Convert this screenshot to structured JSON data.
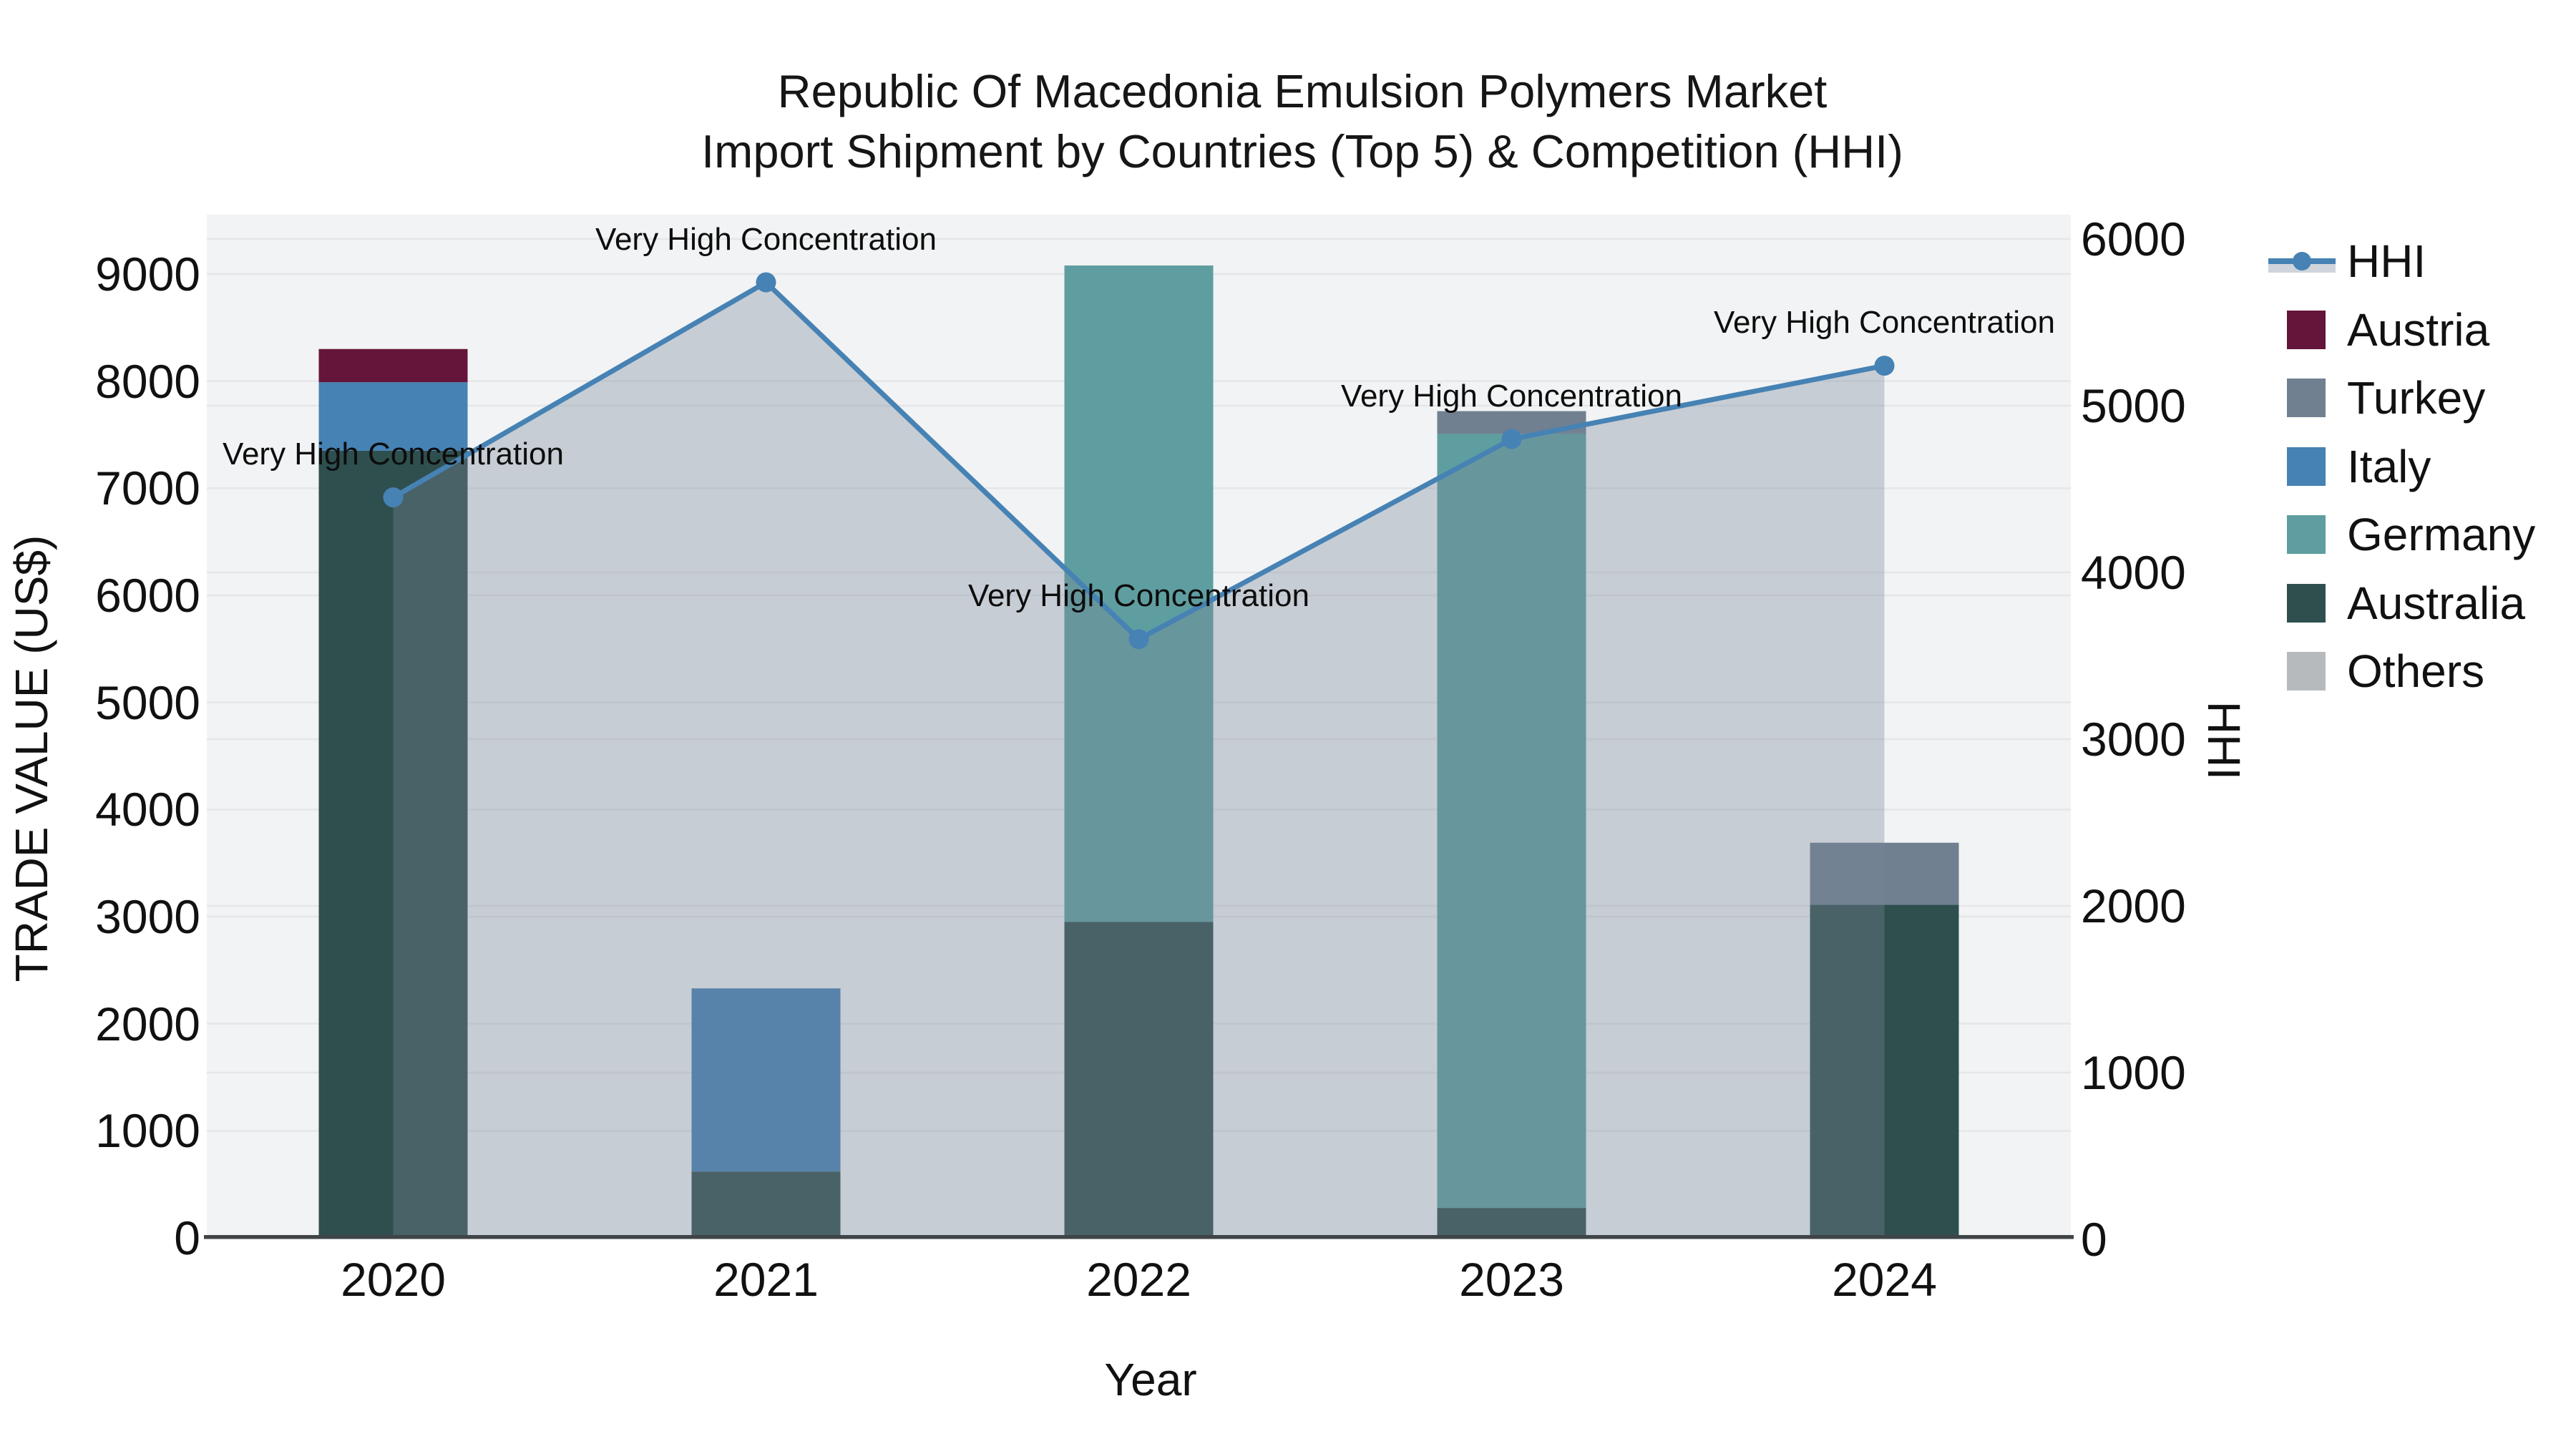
{
  "title": {
    "line1": "Republic Of Macedonia Emulsion Polymers Market",
    "line2": "Import Shipment by Countries (Top 5) & Competition (HHI)"
  },
  "chart_data": {
    "type": "combo_stacked_bar_line",
    "x_label": "Year",
    "categories": [
      "2020",
      "2021",
      "2022",
      "2023",
      "2024"
    ],
    "left_axis": {
      "label": "TRADE VALUE (US$)",
      "ticks": [
        0,
        1000,
        2000,
        3000,
        4000,
        5000,
        6000,
        7000,
        8000,
        9000
      ],
      "range": [
        0,
        9550
      ]
    },
    "right_axis": {
      "label": "HHI",
      "ticks": [
        0,
        1000,
        2000,
        3000,
        4000,
        5000,
        6000
      ],
      "range": [
        0,
        6145
      ]
    },
    "bar_series": [
      {
        "name": "Australia",
        "color": "#2f4f4f",
        "values": [
          7350,
          620,
          2950,
          280,
          3110
        ]
      },
      {
        "name": "Germany",
        "color": "#5f9ea0",
        "values": [
          0,
          0,
          6130,
          7230,
          0
        ]
      },
      {
        "name": "Italy",
        "color": "#4682b4",
        "values": [
          640,
          1710,
          0,
          0,
          0
        ]
      },
      {
        "name": "Turkey",
        "color": "#708090",
        "values": [
          0,
          0,
          0,
          210,
          580
        ]
      },
      {
        "name": "Austria",
        "color": "#651539",
        "values": [
          310,
          0,
          0,
          0,
          0
        ]
      },
      {
        "name": "Others",
        "color": "#b7babd",
        "values": [
          0,
          0,
          0,
          0,
          0
        ]
      }
    ],
    "bar_totals": [
      8300,
      2330,
      9080,
      7720,
      3690
    ],
    "line_series": {
      "name": "HHI",
      "color": "#4682b4",
      "area_fill": "rgba(119,136,153,0.35)",
      "values": [
        4450,
        5740,
        3600,
        4800,
        5240
      ],
      "annotations": [
        "Very High Concentration",
        "Very High Concentration",
        "Very High Concentration",
        "Very High Concentration",
        "Very High Concentration"
      ]
    },
    "legend": [
      {
        "label": "HHI",
        "type": "line",
        "color": "#4682b4"
      },
      {
        "label": "Austria",
        "type": "patch",
        "color": "#651539"
      },
      {
        "label": "Turkey",
        "type": "patch",
        "color": "#708090"
      },
      {
        "label": "Italy",
        "type": "patch",
        "color": "#4682b4"
      },
      {
        "label": "Germany",
        "type": "patch",
        "color": "#5f9ea0"
      },
      {
        "label": "Australia",
        "type": "patch",
        "color": "#2f4f4f"
      },
      {
        "label": "Others",
        "type": "patch",
        "color": "#b7babd"
      }
    ],
    "plot_background": "#f2f3f4",
    "gridline_color": "#e5e6e8",
    "axis_line_color": "#3f4446"
  }
}
